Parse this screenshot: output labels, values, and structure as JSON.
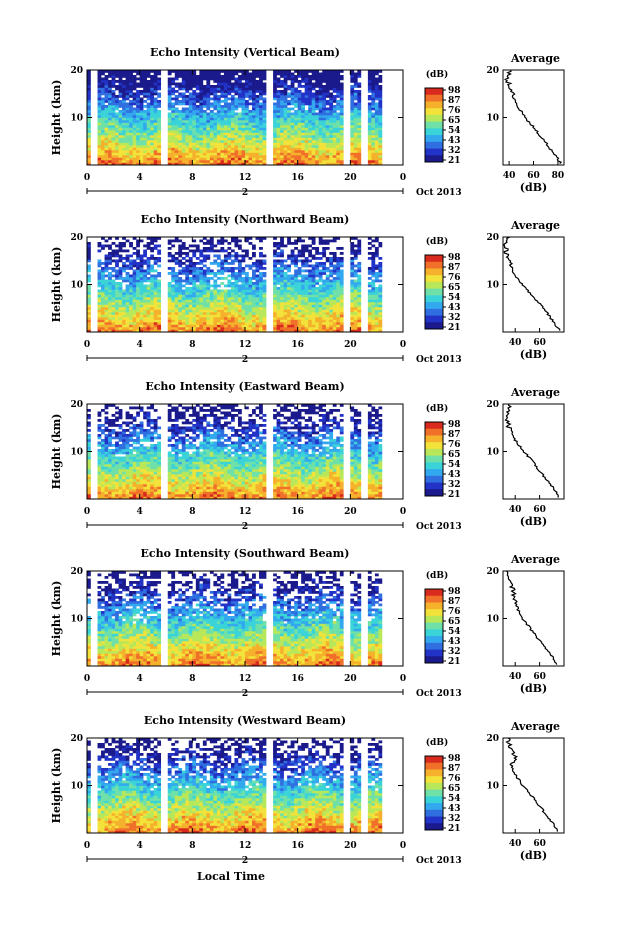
{
  "figure": {
    "date_label": "Oct 2013",
    "day_marker": "2",
    "xlabel": "Local Time",
    "ylabel": "Height (km)",
    "colorbar_unit": "(dB)",
    "avg_title": "Average",
    "avg_xlabel": "(dB)",
    "x_ticks": [
      "0",
      "4",
      "8",
      "12",
      "16",
      "20",
      "0"
    ],
    "y_ticks": [
      "20",
      "10"
    ],
    "colorbar_ticks": [
      "98",
      "87",
      "76",
      "65",
      "54",
      "43",
      "32",
      "21"
    ],
    "colormap": [
      "#1a1a8c",
      "#2233c8",
      "#2f6fe0",
      "#32a8ee",
      "#3ad3d8",
      "#6ee0a8",
      "#b8e85a",
      "#f2e23a",
      "#f5b02c",
      "#f0702a",
      "#d92a1e"
    ]
  },
  "chart_data": [
    {
      "type": "heatmap",
      "title": "Echo Intensity (Vertical Beam)",
      "xlabel": "Local Time",
      "ylabel": "Height (km)",
      "xlim": [
        0,
        24
      ],
      "ylim": [
        0,
        20
      ],
      "clim": [
        21,
        98
      ],
      "data_gaps_hours": [
        [
          0.4,
          0.9
        ],
        [
          5.7,
          6.1
        ],
        [
          13.6,
          14.0
        ],
        [
          19.5,
          19.9
        ],
        [
          20.8,
          21.2
        ]
      ],
      "avg_xticks": [
        "40",
        "60",
        "80"
      ],
      "avg_xlim": [
        35,
        85
      ],
      "average_profile": {
        "height_km": [
          0.5,
          2,
          4,
          6,
          8,
          10,
          12,
          14,
          16,
          18,
          20
        ],
        "db": [
          82,
          78,
          72,
          66,
          60,
          53,
          48,
          44,
          42,
          38,
          40
        ]
      }
    },
    {
      "type": "heatmap",
      "title": "Echo Intensity (Northward Beam)",
      "xlabel": "Local Time",
      "ylabel": "Height (km)",
      "xlim": [
        0,
        24
      ],
      "ylim": [
        0,
        20
      ],
      "clim": [
        21,
        98
      ],
      "data_gaps_hours": [
        [
          0.4,
          0.9
        ],
        [
          5.7,
          6.1
        ],
        [
          13.6,
          14.0
        ],
        [
          19.5,
          19.9
        ],
        [
          20.8,
          21.2
        ]
      ],
      "avg_xticks": [
        "40",
        "60"
      ],
      "avg_xlim": [
        30,
        80
      ],
      "average_profile": {
        "height_km": [
          0.5,
          2,
          4,
          6,
          8,
          10,
          12,
          14,
          16,
          18,
          20
        ],
        "db": [
          76,
          72,
          66,
          60,
          53,
          46,
          40,
          36,
          33,
          32,
          34
        ]
      }
    },
    {
      "type": "heatmap",
      "title": "Echo Intensity (Eastward Beam)",
      "xlabel": "Local Time",
      "ylabel": "Height (km)",
      "xlim": [
        0,
        24
      ],
      "ylim": [
        0,
        20
      ],
      "clim": [
        21,
        98
      ],
      "data_gaps_hours": [
        [
          0.4,
          0.9
        ],
        [
          5.7,
          6.1
        ],
        [
          13.6,
          14.0
        ],
        [
          19.5,
          19.9
        ],
        [
          20.8,
          21.2
        ]
      ],
      "avg_xticks": [
        "40",
        "60"
      ],
      "avg_xlim": [
        30,
        80
      ],
      "average_profile": {
        "height_km": [
          0.5,
          2,
          4,
          6,
          8,
          10,
          12,
          14,
          16,
          18,
          20
        ],
        "db": [
          76,
          72,
          66,
          60,
          54,
          47,
          41,
          36,
          34,
          33,
          35
        ]
      }
    },
    {
      "type": "heatmap",
      "title": "Echo Intensity (Southward Beam)",
      "xlabel": "Local Time",
      "ylabel": "Height (km)",
      "xlim": [
        0,
        24
      ],
      "ylim": [
        0,
        20
      ],
      "clim": [
        21,
        98
      ],
      "data_gaps_hours": [
        [
          0.4,
          0.9
        ],
        [
          5.7,
          6.1
        ],
        [
          13.6,
          14.0
        ],
        [
          19.5,
          19.9
        ],
        [
          20.8,
          21.2
        ]
      ],
      "avg_xticks": [
        "40",
        "60"
      ],
      "avg_xlim": [
        30,
        80
      ],
      "average_profile": {
        "height_km": [
          0.5,
          2,
          4,
          6,
          8,
          10,
          12,
          14,
          16,
          18,
          20
        ],
        "db": [
          74,
          70,
          64,
          58,
          52,
          46,
          42,
          40,
          38,
          35,
          34
        ]
      }
    },
    {
      "type": "heatmap",
      "title": "Echo Intensity (Westward Beam)",
      "xlabel": "Local Time",
      "ylabel": "Height (km)",
      "xlim": [
        0,
        24
      ],
      "ylim": [
        0,
        20
      ],
      "clim": [
        21,
        98
      ],
      "data_gaps_hours": [
        [
          0.4,
          0.9
        ],
        [
          5.7,
          6.1
        ],
        [
          13.6,
          14.0
        ],
        [
          19.5,
          19.9
        ],
        [
          20.8,
          21.2
        ]
      ],
      "avg_xticks": [
        "40",
        "60"
      ],
      "avg_xlim": [
        30,
        80
      ],
      "average_profile": {
        "height_km": [
          0.5,
          2,
          4,
          6,
          8,
          10,
          12,
          14,
          16,
          18,
          20
        ],
        "db": [
          75,
          71,
          65,
          59,
          53,
          46,
          41,
          37,
          40,
          36,
          34
        ]
      }
    }
  ]
}
